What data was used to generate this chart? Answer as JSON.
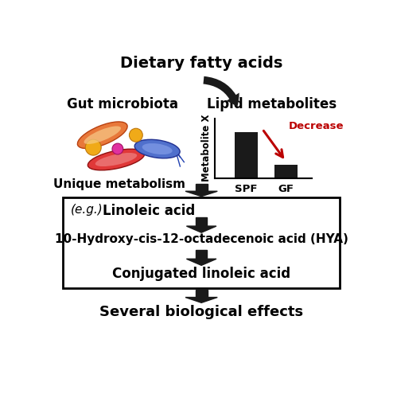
{
  "title": "Dietary fatty acids",
  "gut_microbiota": "Gut microbiota",
  "lipid_metabolites": "Lipid metabolites",
  "unique_metabolism": "Unique metabolism",
  "decrease_label": "Decrease",
  "bar_categories": [
    "SPF",
    "GF"
  ],
  "bar_values": [
    0.78,
    0.22
  ],
  "bar_ylabel": "Metabolite X",
  "eg_label": "(e.g.)",
  "step1": "Linoleic acid",
  "step2": "10-Hydroxy-cis-12-octadecenoic acid (HYA)",
  "step3": "Conjugated linoleic acid",
  "final": "Several biological effects",
  "bg_color": "#ffffff",
  "bar_color": "#1a1a1a",
  "text_color": "#000000",
  "arrow_color": "#1a1a1a",
  "decrease_color": "#bb0000",
  "fig_w": 4.94,
  "fig_h": 5.0,
  "dpi": 100
}
